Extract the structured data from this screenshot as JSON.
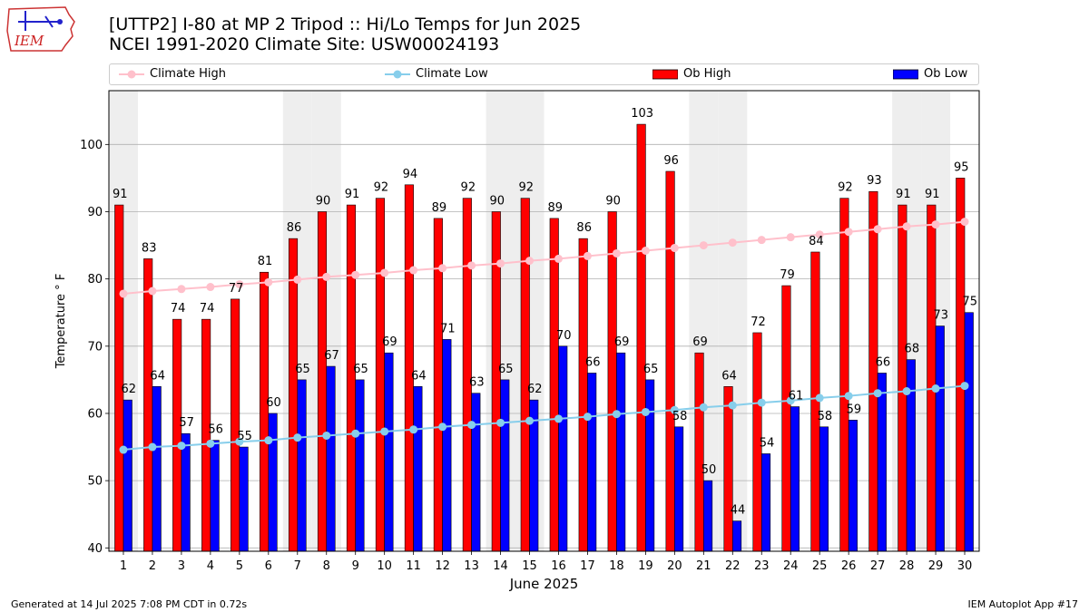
{
  "title_line1": "[UTTP2] I-80 at MP 2 Tripod  :: Hi/Lo Temps for Jun 2025",
  "title_line2": "NCEI 1991-2020 Climate Site: USW00024193",
  "logo_text": "IEM",
  "footer_left": "Generated at 14 Jul 2025 7:08 PM CDT in 0.72s",
  "footer_right": "IEM Autoplot App #17",
  "colors": {
    "climate_high": "#ffc0cb",
    "climate_low": "#87ceeb",
    "ob_high": "#ff0000",
    "ob_low": "#0000ff",
    "weekend_band": "#eeeeee"
  },
  "chart_data": {
    "type": "bar",
    "xlabel": "June 2025",
    "ylabel": "Temperature ° F",
    "ylim": [
      39.5,
      108
    ],
    "yticks": [
      40,
      50,
      60,
      70,
      80,
      90,
      100
    ],
    "grid": true,
    "legend_position": "top",
    "weekend_days": [
      1,
      7,
      8,
      14,
      15,
      21,
      22,
      28,
      29
    ],
    "categories": [
      "1",
      "2",
      "3",
      "4",
      "5",
      "6",
      "7",
      "8",
      "9",
      "10",
      "11",
      "12",
      "13",
      "14",
      "15",
      "16",
      "17",
      "18",
      "19",
      "20",
      "21",
      "22",
      "23",
      "24",
      "25",
      "26",
      "27",
      "28",
      "29",
      "30"
    ],
    "series": [
      {
        "name": "Climate High",
        "kind": "line",
        "values": [
          77.8,
          78.2,
          78.5,
          78.8,
          79.2,
          79.5,
          79.9,
          80.3,
          80.6,
          80.9,
          81.3,
          81.6,
          82.0,
          82.3,
          82.7,
          83.0,
          83.4,
          83.8,
          84.2,
          84.6,
          85.0,
          85.4,
          85.8,
          86.2,
          86.6,
          87.0,
          87.4,
          87.8,
          88.1,
          88.5
        ]
      },
      {
        "name": "Climate Low",
        "kind": "line",
        "values": [
          54.6,
          55.0,
          55.2,
          55.5,
          55.8,
          56.0,
          56.4,
          56.7,
          57.0,
          57.3,
          57.6,
          58.0,
          58.3,
          58.6,
          58.9,
          59.2,
          59.5,
          59.9,
          60.2,
          60.5,
          60.9,
          61.2,
          61.6,
          61.9,
          62.3,
          62.6,
          63.0,
          63.3,
          63.7,
          64.1
        ]
      },
      {
        "name": "Ob High",
        "kind": "bar",
        "values": [
          91,
          83,
          74,
          74,
          77,
          81,
          86,
          90,
          91,
          92,
          94,
          89,
          92,
          90,
          92,
          89,
          86,
          90,
          103,
          96,
          69,
          64,
          72,
          79,
          84,
          92,
          93,
          91,
          91,
          95
        ]
      },
      {
        "name": "Ob Low",
        "kind": "bar",
        "values": [
          62,
          64,
          57,
          56,
          55,
          60,
          65,
          67,
          65,
          69,
          64,
          71,
          63,
          65,
          62,
          70,
          66,
          69,
          65,
          58,
          50,
          44,
          54,
          61,
          58,
          59,
          66,
          68,
          73,
          75
        ]
      }
    ]
  }
}
